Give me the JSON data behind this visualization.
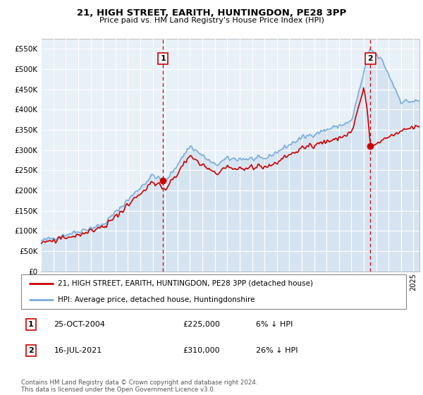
{
  "title": "21, HIGH STREET, EARITH, HUNTINGDON, PE28 3PP",
  "subtitle": "Price paid vs. HM Land Registry's House Price Index (HPI)",
  "background_color": "#ffffff",
  "plot_bg_color": "#e8f0f8",
  "hpi_color": "#7aaddc",
  "hpi_fill_color": "#c5d9ee",
  "price_color": "#cc0000",
  "vline_color": "#cc0000",
  "ylim": [
    0,
    575000
  ],
  "yticks": [
    0,
    50000,
    100000,
    150000,
    200000,
    250000,
    300000,
    350000,
    400000,
    450000,
    500000,
    550000
  ],
  "ytick_labels": [
    "£0",
    "£50K",
    "£100K",
    "£150K",
    "£200K",
    "£250K",
    "£300K",
    "£350K",
    "£400K",
    "£450K",
    "£500K",
    "£550K"
  ],
  "xlim_start": 1995,
  "xlim_end": 2025.5,
  "marker1_x": 2004.82,
  "marker1_y": 225000,
  "marker2_x": 2021.54,
  "marker2_y": 310000,
  "legend_label1": "21, HIGH STREET, EARITH, HUNTINGDON, PE28 3PP (detached house)",
  "legend_label2": "HPI: Average price, detached house, Huntingdonshire",
  "table_row1": [
    "1",
    "25-OCT-2004",
    "£225,000",
    "6% ↓ HPI"
  ],
  "table_row2": [
    "2",
    "16-JUL-2021",
    "£310,000",
    "26% ↓ HPI"
  ],
  "footer": "Contains HM Land Registry data © Crown copyright and database right 2024.\nThis data is licensed under the Open Government Licence v3.0."
}
